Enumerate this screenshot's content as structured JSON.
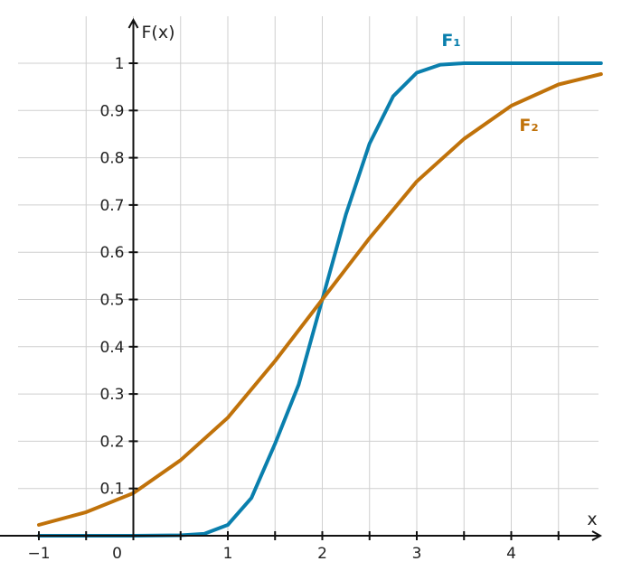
{
  "chart_data": {
    "type": "line",
    "title": "",
    "xlabel": "x",
    "ylabel": "F(x)",
    "xlim": [
      -1,
      4.95
    ],
    "ylim": [
      0,
      1.1
    ],
    "grid": true,
    "x_ticks": [
      {
        "value": -1,
        "label": "−1"
      },
      {
        "value": 0,
        "label": "0"
      },
      {
        "value": 1,
        "label": "1"
      },
      {
        "value": 2,
        "label": "2"
      },
      {
        "value": 3,
        "label": "3"
      },
      {
        "value": 4,
        "label": "4"
      }
    ],
    "y_ticks": [
      {
        "value": 0.1,
        "label": "0.1"
      },
      {
        "value": 0.2,
        "label": "0.2"
      },
      {
        "value": 0.3,
        "label": "0.3"
      },
      {
        "value": 0.4,
        "label": "0.4"
      },
      {
        "value": 0.5,
        "label": "0.5"
      },
      {
        "value": 0.6,
        "label": "0.6"
      },
      {
        "value": 0.7,
        "label": "0.7"
      },
      {
        "value": 0.8,
        "label": "0.8"
      },
      {
        "value": 0.9,
        "label": "0.9"
      },
      {
        "value": 1,
        "label": "1"
      }
    ],
    "x_minor_step": 0.5,
    "series": [
      {
        "name": "F₁",
        "color": "#0a7fad",
        "x": [
          -1,
          0,
          0.5,
          0.75,
          1,
          1.25,
          1.5,
          1.75,
          2,
          2.25,
          2.5,
          2.75,
          3,
          3.25,
          3.5,
          4,
          4.95
        ],
        "y": [
          0,
          0,
          0.001,
          0.004,
          0.023,
          0.08,
          0.195,
          0.32,
          0.5,
          0.68,
          0.83,
          0.93,
          0.98,
          0.997,
          1,
          1,
          1
        ]
      },
      {
        "name": "F₂",
        "color": "#c0720a",
        "x": [
          -1,
          -0.5,
          0,
          0.5,
          1,
          1.5,
          2,
          2.5,
          3,
          3.5,
          4,
          4.5,
          4.95
        ],
        "y": [
          0.023,
          0.05,
          0.09,
          0.16,
          0.25,
          0.37,
          0.5,
          0.63,
          0.75,
          0.84,
          0.91,
          0.955,
          0.977
        ]
      }
    ]
  }
}
